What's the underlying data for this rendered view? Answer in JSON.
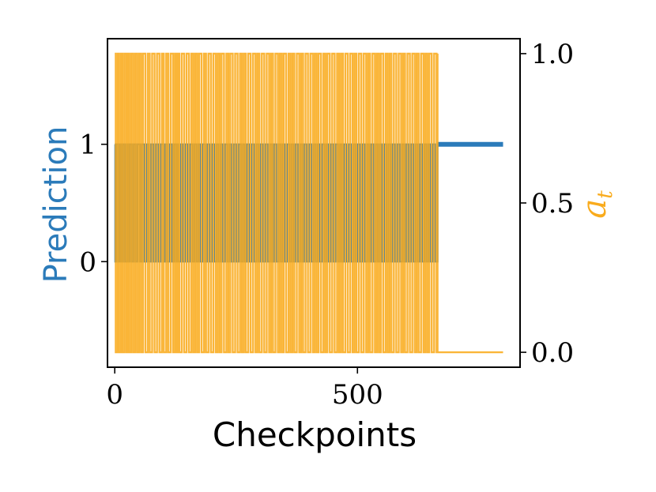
{
  "chart_data": {
    "type": "line",
    "xlabel": "Checkpoints",
    "ylabel_left": "Prediction",
    "ylabel_right": "a",
    "ylabel_right_subscript": "t",
    "xlim": [
      -15,
      835
    ],
    "ylim_left": [
      -0.9,
      1.9
    ],
    "ylim_right": [
      -0.05,
      1.05
    ],
    "x_ticks": [
      {
        "value": 0,
        "label": "0"
      },
      {
        "value": 500,
        "label": "500"
      }
    ],
    "left_ticks": [
      {
        "value": 0,
        "label": "0"
      },
      {
        "value": 1,
        "label": "1"
      }
    ],
    "right_ticks": [
      {
        "value": 0.0,
        "label": "0.0"
      },
      {
        "value": 0.5,
        "label": "0.5"
      },
      {
        "value": 1.0,
        "label": "1.0"
      }
    ],
    "grid": false,
    "colors": {
      "prediction": "#2b7bba",
      "a_t": "#f9ab1c",
      "frame": "#000000"
    },
    "series": [
      {
        "axis": "left",
        "description_values": "binary 0/1, rapidly alternating over x in [0, 665], then constant 1 until 800",
        "x_end_alternating": 665,
        "x_end": 800,
        "final_value": 1,
        "switch_points": [
          0,
          1,
          4,
          8,
          11,
          14,
          17,
          21,
          25,
          28,
          31,
          35,
          39,
          43,
          47,
          52,
          56,
          61,
          66,
          70,
          75,
          80,
          85,
          90,
          95,
          100,
          104,
          108,
          113,
          118,
          122,
          126,
          128,
          131,
          136,
          140,
          145,
          150,
          155,
          160,
          164,
          168,
          172,
          176,
          181,
          186,
          190,
          195,
          200,
          205,
          210,
          214,
          218,
          222,
          227,
          232,
          236,
          240,
          245,
          250,
          255,
          260,
          264,
          268,
          272,
          277,
          282,
          287,
          292,
          296,
          300,
          305,
          310,
          315,
          320,
          324,
          328,
          333,
          338,
          342,
          346,
          350,
          355,
          360,
          364,
          368,
          372,
          377,
          382,
          386,
          390,
          395,
          400,
          405,
          410,
          414,
          418,
          422,
          427,
          432,
          436,
          440,
          445,
          450,
          455,
          460,
          464,
          468,
          472,
          477,
          482,
          487,
          492,
          496,
          500,
          505,
          510,
          515,
          520,
          524,
          528,
          533,
          538,
          542,
          546,
          550,
          555,
          560,
          564,
          568,
          572,
          577,
          582,
          587,
          592,
          596,
          600,
          605,
          610,
          615,
          620,
          624,
          628,
          633,
          638,
          642,
          646,
          650,
          655,
          660,
          665
        ]
      },
      {
        "axis": "right",
        "description_values": "binary 0/1, rapidly alternating over x in [0, 665], then constant 0 until 800",
        "x_end_alternating": 665,
        "x_end": 800,
        "final_value": 0,
        "switch_points": [
          0,
          2,
          6,
          9,
          13,
          16,
          20,
          24,
          27,
          30,
          34,
          38,
          42,
          46,
          50,
          54,
          58,
          63,
          68,
          72,
          77,
          82,
          87,
          92,
          97,
          101,
          106,
          110,
          115,
          120,
          124,
          127,
          130,
          133,
          138,
          143,
          148,
          153,
          158,
          162,
          166,
          170,
          174,
          179,
          184,
          188,
          193,
          198,
          203,
          208,
          212,
          216,
          220,
          225,
          230,
          234,
          238,
          243,
          248,
          253,
          258,
          262,
          266,
          270,
          275,
          280,
          285,
          290,
          294,
          298,
          303,
          308,
          313,
          318,
          322,
          326,
          331,
          336,
          340,
          344,
          348,
          353,
          358,
          362,
          366,
          370,
          375,
          380,
          384,
          388,
          393,
          398,
          403,
          408,
          412,
          416,
          420,
          425,
          430,
          434,
          438,
          443,
          448,
          453,
          458,
          462,
          466,
          470,
          475,
          480,
          485,
          490,
          494,
          498,
          503,
          508,
          513,
          518,
          522,
          526,
          531,
          536,
          540,
          544,
          548,
          553,
          558,
          562,
          566,
          570,
          575,
          580,
          585,
          590,
          594,
          598,
          603,
          608,
          613,
          618,
          622,
          626,
          631,
          636,
          640,
          644,
          648,
          653,
          658,
          663,
          665
        ]
      }
    ]
  }
}
